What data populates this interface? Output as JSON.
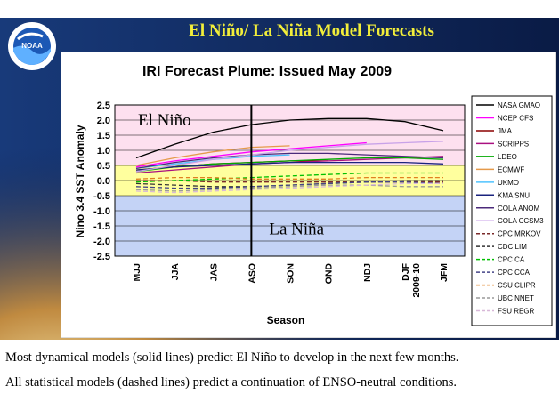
{
  "slide": {
    "title": "El Niño/ La Niña Model Forecasts",
    "logo_text": "NOAA",
    "colors": {
      "title": "#f2ee3a",
      "background": "#0b1f4e"
    },
    "captions": [
      "Most dynamical models (solid lines) predict El Niño to develop in the next few months.",
      "All statistical models (dashed lines) predict a continuation of ENSO-neutral conditions."
    ]
  },
  "chart_data": {
    "type": "line",
    "title": "IRI Forecast Plume: Issued May 2009",
    "xlabel": "Season",
    "ylabel": "Nino 3.4 SST Anomaly",
    "categories": [
      "MJJ",
      "JJA",
      "JAS",
      "ASO",
      "SON",
      "OND",
      "NDJ",
      "DJF 2009-10",
      "JFM"
    ],
    "ylim": [
      -2.5,
      2.5
    ],
    "yticks": [
      "2.5",
      "2.0",
      "1.5",
      "1.0",
      "0.5",
      "0.0",
      "-0.5",
      "-1.0",
      "-1.5",
      "-2.0",
      "-2.5"
    ],
    "grid": true,
    "legend_position": "right",
    "region_labels": {
      "el_nino": "El Niño",
      "la_nina": "La Niña"
    },
    "region_colors": {
      "el_nino": "#fde0ef",
      "neutral": "#ffff9e",
      "la_nina": "#c4d3f6"
    },
    "marker_line_at": "ASO",
    "series": [
      {
        "name": "NASA GMAO",
        "color": "#000000",
        "dash": false,
        "values": [
          0.75,
          1.2,
          1.6,
          1.85,
          2.0,
          2.05,
          2.05,
          1.95,
          1.65
        ]
      },
      {
        "name": "NCEP CFS",
        "color": "#ff00ff",
        "dash": false,
        "values": [
          0.45,
          0.65,
          0.8,
          0.95,
          1.05,
          1.15,
          1.25,
          null,
          null
        ]
      },
      {
        "name": "JMA",
        "color": "#8b0000",
        "dash": false,
        "values": [
          0.35,
          0.45,
          0.55,
          0.6,
          0.65,
          0.65,
          null,
          null,
          null
        ]
      },
      {
        "name": "SCRIPPS",
        "color": "#aa1080",
        "dash": false,
        "values": [
          0.25,
          0.35,
          0.45,
          0.55,
          0.6,
          0.65,
          0.7,
          0.75,
          0.8
        ]
      },
      {
        "name": "LDEO",
        "color": "#00aa00",
        "dash": false,
        "values": [
          0.3,
          0.45,
          0.55,
          0.6,
          0.65,
          0.7,
          0.75,
          0.75,
          0.7
        ]
      },
      {
        "name": "ECMWF",
        "color": "#e59a4a",
        "dash": false,
        "values": [
          0.5,
          0.75,
          0.95,
          1.1,
          1.15,
          null,
          null,
          null,
          null
        ]
      },
      {
        "name": "UKMO",
        "color": "#4fc3ff",
        "dash": false,
        "values": [
          0.4,
          0.55,
          0.7,
          0.8,
          0.85,
          null,
          null,
          null,
          null
        ]
      },
      {
        "name": "KMA SNU",
        "color": "#1a237e",
        "dash": false,
        "values": [
          0.35,
          0.45,
          0.5,
          0.55,
          0.6,
          0.6,
          0.6,
          0.6,
          0.55
        ]
      },
      {
        "name": "COLA ANOM",
        "color": "#4b2a7a",
        "dash": false,
        "values": [
          0.4,
          0.6,
          0.75,
          0.85,
          0.9,
          0.9,
          0.85,
          0.8,
          0.75
        ]
      },
      {
        "name": "COLA CCSM3",
        "color": "#c8a2e8",
        "dash": false,
        "values": [
          0.3,
          0.5,
          0.7,
          0.85,
          1.0,
          1.1,
          1.2,
          1.25,
          1.3
        ]
      },
      {
        "name": "CPC MRKOV",
        "color": "#7a2a2a",
        "dash": true,
        "values": [
          0.0,
          0.0,
          -0.05,
          -0.05,
          -0.05,
          -0.05,
          -0.05,
          -0.05,
          -0.05
        ]
      },
      {
        "name": "CDC LIM",
        "color": "#333333",
        "dash": true,
        "values": [
          -0.1,
          -0.15,
          -0.2,
          -0.2,
          -0.15,
          -0.1,
          -0.05,
          0.0,
          0.0
        ]
      },
      {
        "name": "CPC CA",
        "color": "#00c000",
        "dash": true,
        "values": [
          -0.05,
          0.0,
          0.05,
          0.1,
          0.15,
          0.2,
          0.25,
          0.25,
          0.25
        ]
      },
      {
        "name": "CPC CCA",
        "color": "#444488",
        "dash": true,
        "values": [
          -0.2,
          -0.25,
          -0.25,
          -0.2,
          -0.15,
          -0.1,
          -0.05,
          -0.05,
          -0.1
        ]
      },
      {
        "name": "CSU CLIPR",
        "color": "#e08020",
        "dash": true,
        "values": [
          0.05,
          0.1,
          0.1,
          0.05,
          0.05,
          0.05,
          0.1,
          0.1,
          0.1
        ]
      },
      {
        "name": "UBC NNET",
        "color": "#9a9a9a",
        "dash": true,
        "values": [
          -0.3,
          -0.35,
          -0.3,
          -0.25,
          -0.2,
          -0.15,
          -0.15,
          -0.2,
          -0.2
        ]
      },
      {
        "name": "FSU REGR",
        "color": "#d8b8d8",
        "dash": true,
        "values": [
          -0.35,
          -0.4,
          -0.35,
          -0.3,
          -0.25,
          -0.2,
          -0.15,
          -0.1,
          -0.1
        ]
      }
    ]
  }
}
